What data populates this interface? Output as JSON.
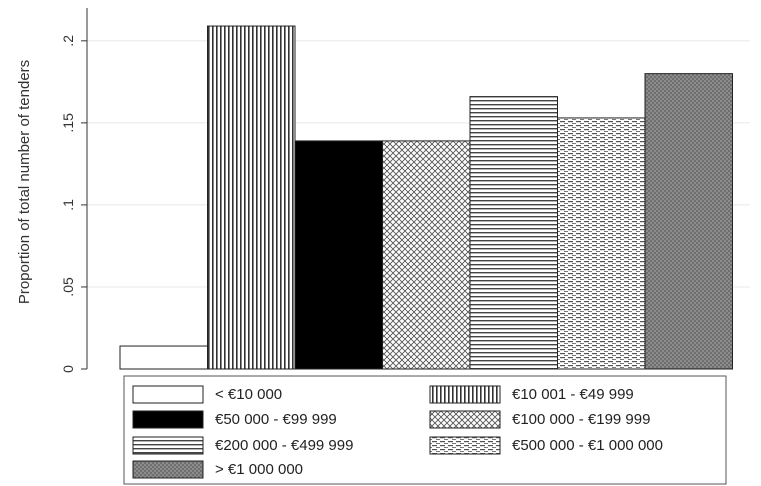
{
  "chart_data": {
    "type": "bar",
    "title": "",
    "xlabel": "",
    "ylabel": "Proportion of total number of tenders",
    "ylim": [
      0,
      0.22
    ],
    "yticks": [
      0,
      0.05,
      0.1,
      0.15,
      0.2
    ],
    "ytick_labels": [
      "0",
      ".05",
      ".1",
      ".15",
      ".2"
    ],
    "grid": true,
    "legend_position": "bottom",
    "series": [
      {
        "name": "< €10 000",
        "value": 0.014,
        "fill": "white"
      },
      {
        "name": "€10 001 - €49 999",
        "value": 0.209,
        "fill": "vertical-lines"
      },
      {
        "name": "€50 000 - €99 999",
        "value": 0.139,
        "fill": "black"
      },
      {
        "name": "€100 000 - €199 999",
        "value": 0.139,
        "fill": "crosshatch"
      },
      {
        "name": "€200 000 - €499 999",
        "value": 0.166,
        "fill": "horizontal-lines"
      },
      {
        "name": "€500 000 - €1 000 000",
        "value": 0.153,
        "fill": "dashed-lines"
      },
      {
        "name": "> €1 000 000",
        "value": 0.18,
        "fill": "dark-dots"
      }
    ]
  },
  "colors": {
    "bar_edge": "#222222",
    "grid": "#e8e8e8",
    "dark_fill": "#7a7a7a"
  }
}
